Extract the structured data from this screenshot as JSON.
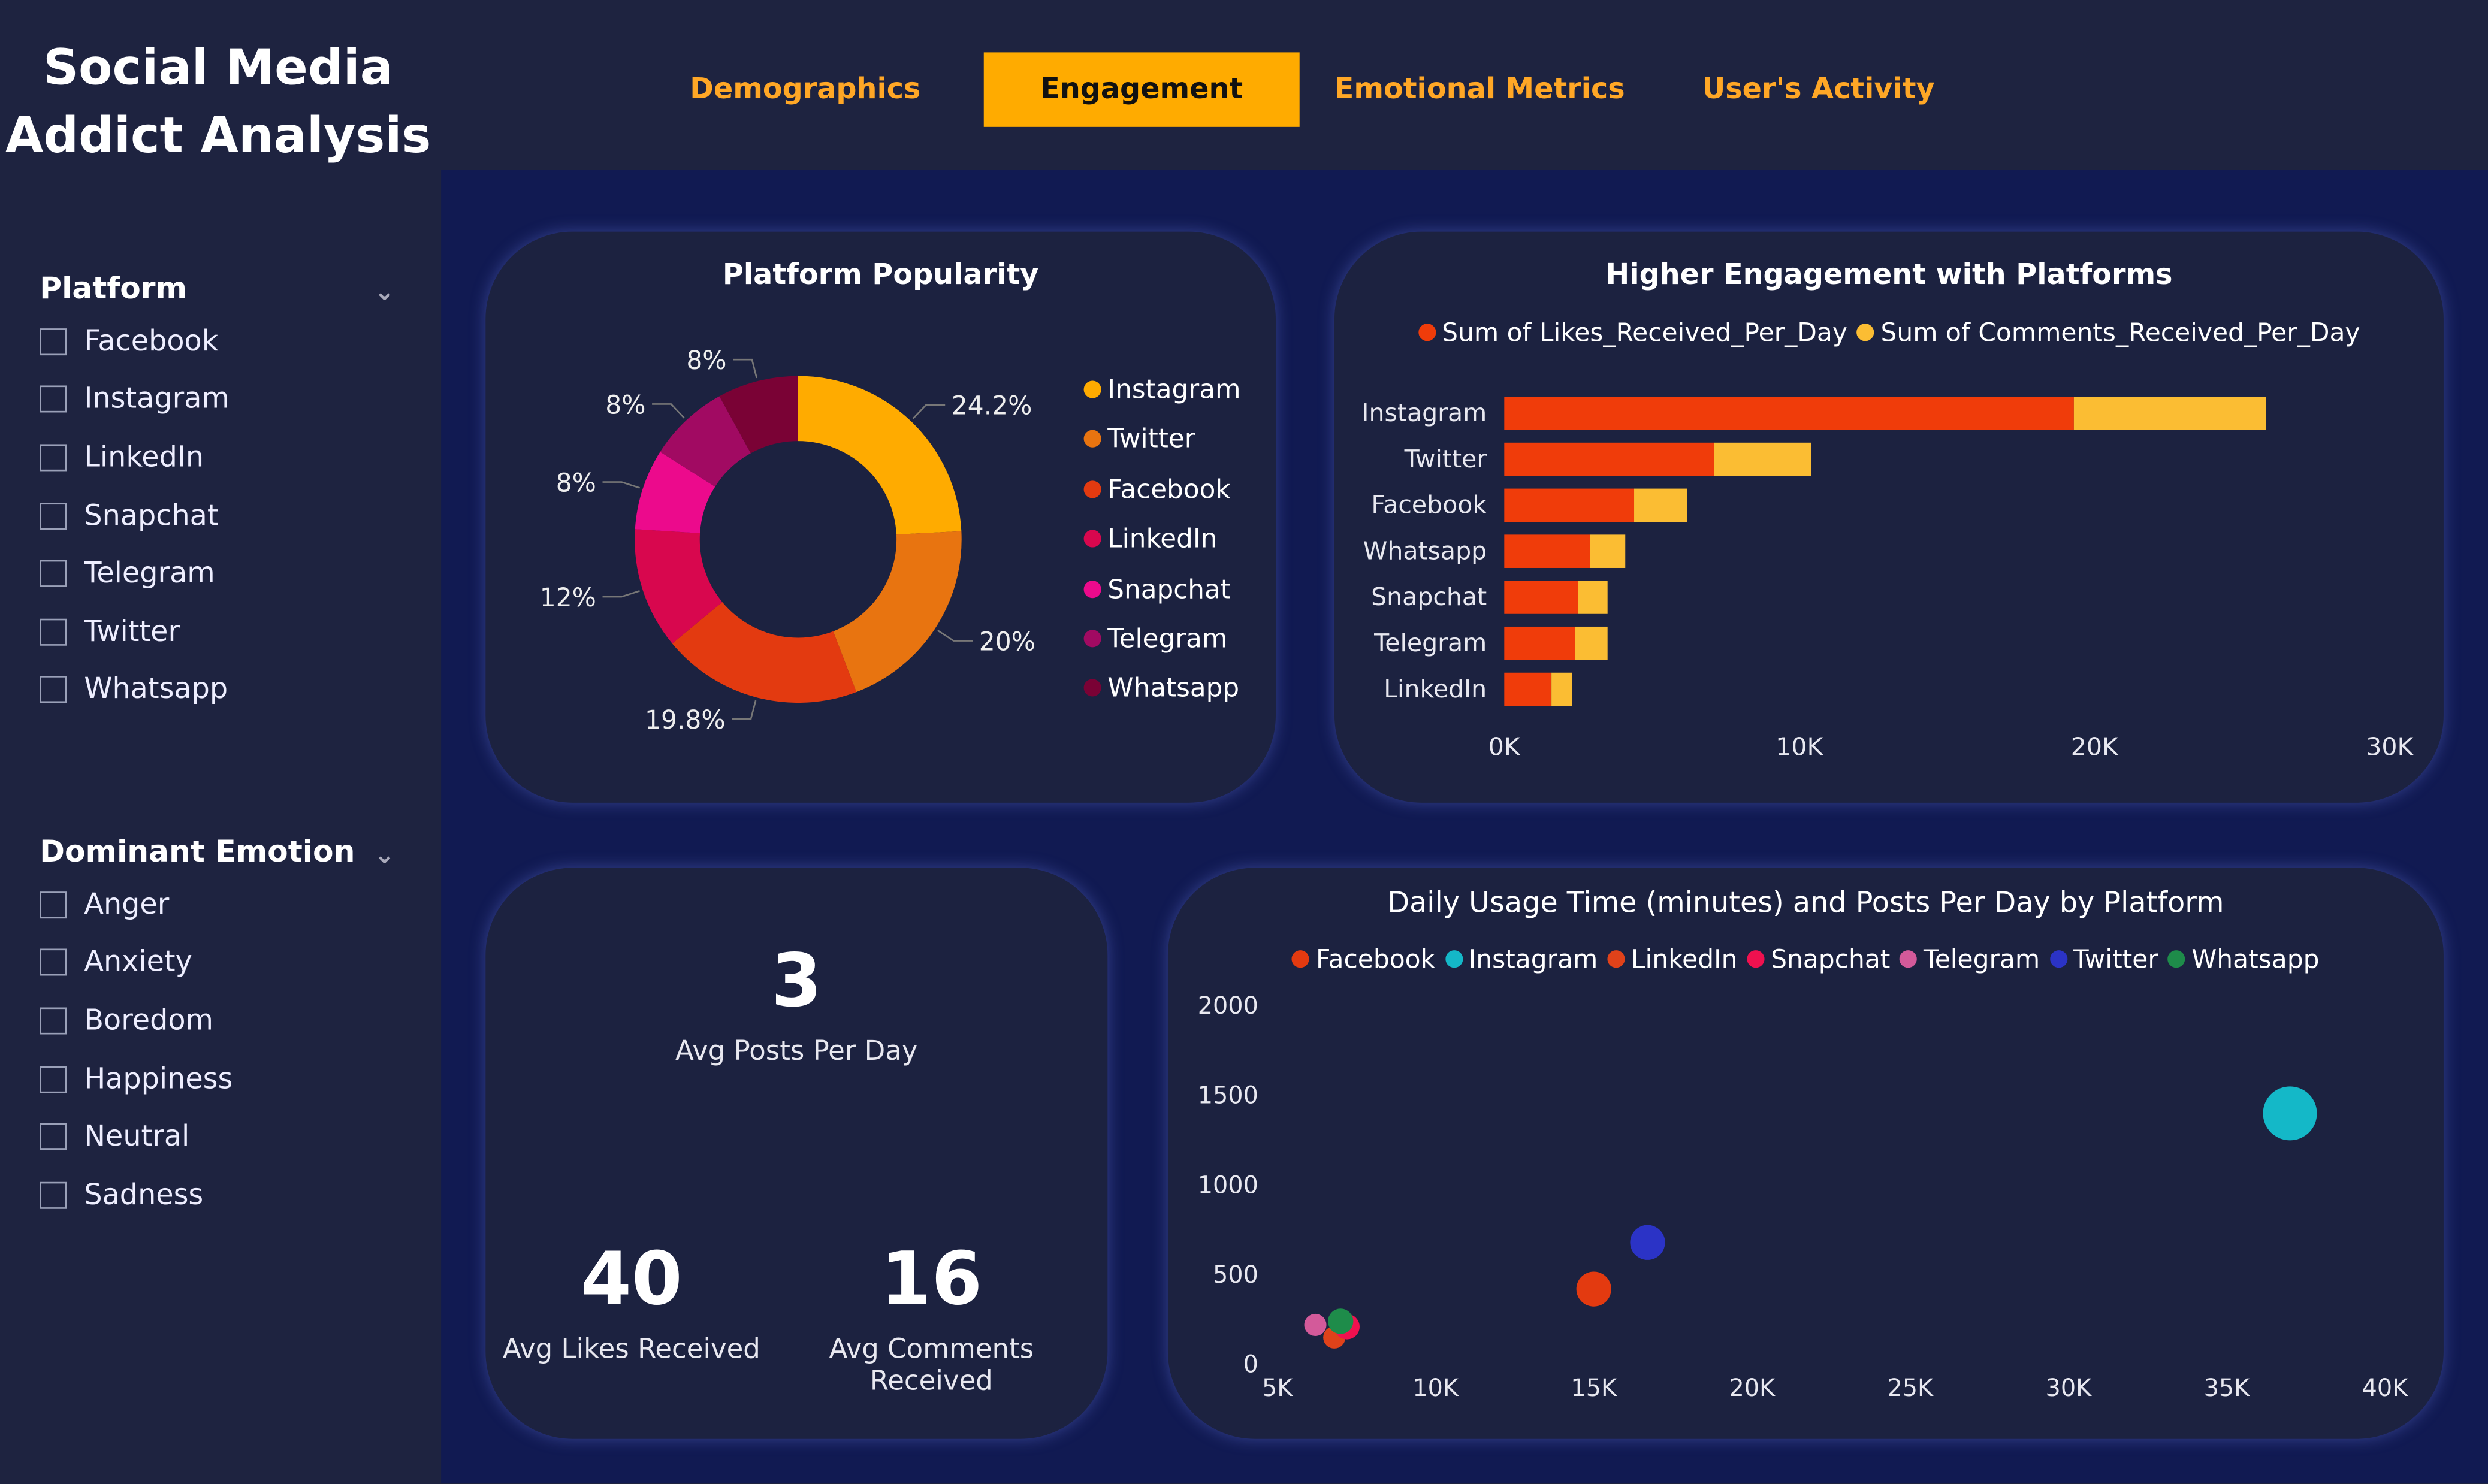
{
  "app": {
    "title_line1": "Social Media",
    "title_line2": "Addict Analysis"
  },
  "tabs": [
    {
      "label": "Demographics",
      "active": false
    },
    {
      "label": "Engagement",
      "active": true
    },
    {
      "label": "Emotional Metrics",
      "active": false
    },
    {
      "label": "User's Activity",
      "active": false
    }
  ],
  "slicers": {
    "platform": {
      "title": "Platform",
      "options": [
        "Facebook",
        "Instagram",
        "LinkedIn",
        "Snapchat",
        "Telegram",
        "Twitter",
        "Whatsapp"
      ]
    },
    "emotion": {
      "title": "Dominant Emotion",
      "options": [
        "Anger",
        "Anxiety",
        "Boredom",
        "Happiness",
        "Neutral",
        "Sadness"
      ]
    }
  },
  "colors": {
    "accent": "#ffab00",
    "likes": "#f03c0a",
    "comments": "#fbbd33"
  },
  "kpis": {
    "posts": {
      "value": "3",
      "label": "Avg Posts Per Day"
    },
    "likes": {
      "value": "40",
      "label": "Avg Likes Received"
    },
    "comments": {
      "value": "16",
      "label": "Avg Comments Received"
    }
  },
  "chart_data": [
    {
      "type": "pie",
      "title": "Platform Popularity",
      "donut": true,
      "legend_position": "right",
      "categories": [
        "Instagram",
        "Twitter",
        "Facebook",
        "LinkedIn",
        "Snapchat",
        "Telegram",
        "Whatsapp"
      ],
      "values": [
        24.2,
        20,
        19.8,
        12,
        8,
        8,
        8
      ],
      "data_labels": [
        "24.2%",
        "20%",
        "19.8%",
        "12%",
        "8%",
        "8%",
        "8%"
      ],
      "colors": [
        "#ffab00",
        "#e87410",
        "#e33a10",
        "#d8074e",
        "#ec0a8c",
        "#a10a62",
        "#7a0235"
      ]
    },
    {
      "type": "bar",
      "orientation": "horizontal",
      "stacked": true,
      "title": "Higher Engagement with Platforms",
      "legend_position": "top",
      "categories": [
        "Instagram",
        "Twitter",
        "Facebook",
        "Whatsapp",
        "Snapchat",
        "Telegram",
        "LinkedIn"
      ],
      "series": [
        {
          "name": "Sum of Likes_Received_Per_Day",
          "values": [
            19300,
            7100,
            4400,
            2900,
            2500,
            2400,
            1600
          ],
          "color": "#f03c0a"
        },
        {
          "name": "Sum of Comments_Received_Per_Day",
          "values": [
            6500,
            3300,
            1800,
            1200,
            1000,
            1100,
            700
          ],
          "color": "#fbbd33"
        }
      ],
      "xlim": [
        0,
        30000
      ],
      "xticks": [
        "0K",
        "10K",
        "20K",
        "30K"
      ],
      "grid": false
    },
    {
      "type": "scatter",
      "title": "Daily Usage Time (minutes) and Posts Per Day by Platform",
      "legend_position": "top",
      "xlim": [
        5000,
        40000
      ],
      "ylim": [
        0,
        2000
      ],
      "xticks": [
        "5K",
        "10K",
        "15K",
        "20K",
        "25K",
        "30K",
        "35K",
        "40K"
      ],
      "yticks": [
        "0",
        "500",
        "1000",
        "1500",
        "2000"
      ],
      "grid": false,
      "series": [
        {
          "name": "Facebook",
          "x": 15000,
          "y": 420,
          "color": "#e33a10",
          "size": 11
        },
        {
          "name": "Instagram",
          "x": 37000,
          "y": 1400,
          "color": "#14b8c8",
          "size": 17
        },
        {
          "name": "LinkedIn",
          "x": 6800,
          "y": 150,
          "color": "#e0421a",
          "size": 7
        },
        {
          "name": "Snapchat",
          "x": 7200,
          "y": 210,
          "color": "#f0114f",
          "size": 8
        },
        {
          "name": "Telegram",
          "x": 6200,
          "y": 220,
          "color": "#d35a9a",
          "size": 7
        },
        {
          "name": "Twitter",
          "x": 16700,
          "y": 680,
          "color": "#2b33c6",
          "size": 11
        },
        {
          "name": "Whatsapp",
          "x": 7000,
          "y": 240,
          "color": "#1e8c4a",
          "size": 8
        }
      ]
    }
  ]
}
